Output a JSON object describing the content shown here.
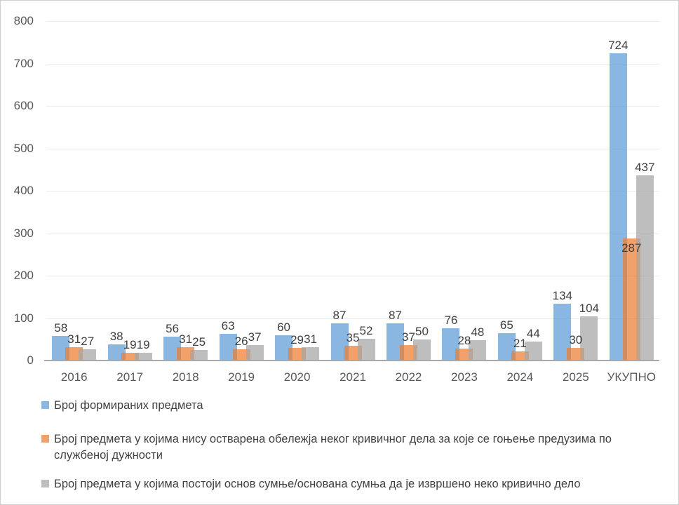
{
  "figure": {
    "background": "#ffffff",
    "border_color": "#cfcfcf"
  },
  "chart_data": {
    "type": "bar",
    "title": "",
    "xlabel": "",
    "ylabel": "",
    "categories": [
      "2016",
      "2017",
      "2018",
      "2019",
      "2020",
      "2021",
      "2022",
      "2023",
      "2024",
      "2025",
      "УКУПНО"
    ],
    "series": [
      {
        "name": "Број формираних предмета",
        "color": "#5B9BD5",
        "values": [
          58,
          38,
          56,
          63,
          60,
          87,
          87,
          76,
          65,
          134,
          724
        ],
        "label_inside_indices": []
      },
      {
        "name": "Број предмета у којима нису остварена обележја неког кривичног дела за које се гоњење предузима по службеној дужности",
        "color": "#ED7D31",
        "values": [
          31,
          19,
          31,
          26,
          29,
          35,
          37,
          28,
          21,
          30,
          287
        ],
        "label_inside_indices": [
          10
        ]
      },
      {
        "name": "Број предмета у којима постоји основ сумње/основана сумња да је извршено неко кривично дело",
        "color": "#A5A5A5",
        "values": [
          27,
          19,
          25,
          37,
          31,
          52,
          50,
          48,
          44,
          104,
          437
        ],
        "label_inside_indices": []
      }
    ],
    "ylim": [
      0,
      800
    ],
    "ytick_step": 100,
    "ytick_labels": [
      "0",
      "100",
      "200",
      "300",
      "400",
      "500",
      "600",
      "700",
      "800"
    ],
    "grid": true,
    "legend_position": "bottom-left",
    "bar_alpha": 0.72,
    "gridline_color": "#eaeaea",
    "axis_color": "#a9a9a9",
    "tick_label_color": "#595959",
    "value_label_color": "#404040"
  }
}
